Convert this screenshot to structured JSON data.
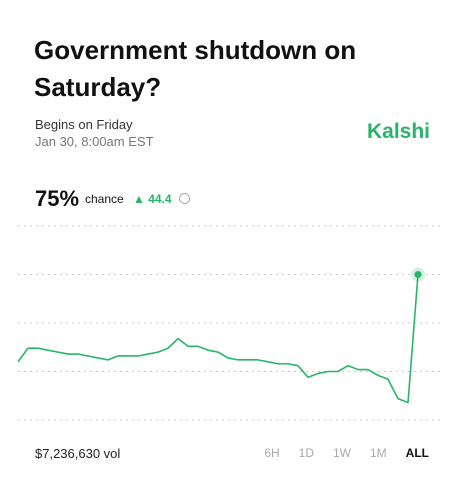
{
  "header": {
    "title": "Government shutdown on Saturday?",
    "subtitle": "Begins on Friday",
    "date": "Jan 30, 8:00am EST",
    "brand": "Kalshi"
  },
  "stats": {
    "chance": "75%",
    "chance_label": "chance",
    "change": "44.4"
  },
  "chart_data": {
    "type": "line",
    "color": "#27b56a",
    "values": [
      30,
      37,
      37,
      36,
      35,
      34,
      34,
      33,
      32,
      31,
      33,
      33,
      33,
      34,
      35,
      37,
      42,
      38,
      38,
      36,
      35,
      32,
      31,
      31,
      31,
      30,
      29,
      29,
      28,
      22,
      24,
      25,
      25,
      28,
      26,
      26,
      23,
      21,
      11,
      9,
      75
    ],
    "ylim": [
      0,
      100
    ],
    "yticks": [
      0,
      25,
      50,
      75,
      100
    ],
    "grid": true
  },
  "footer": {
    "volume": "$7,236,630 vol",
    "ranges": [
      "6H",
      "1D",
      "1W",
      "1M",
      "ALL"
    ],
    "selected": "ALL"
  }
}
